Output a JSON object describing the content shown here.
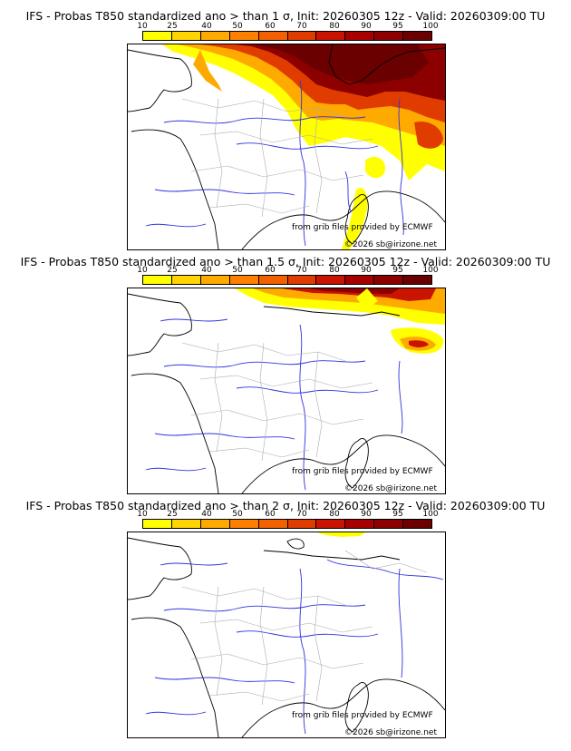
{
  "colors": {
    "scale": [
      "#ffff00",
      "#ffd400",
      "#ffaa00",
      "#ff8000",
      "#f26000",
      "#e03c00",
      "#c81400",
      "#a80000",
      "#8c0000",
      "#6a0000"
    ],
    "coast": "#000000",
    "rivers": "#3232dd",
    "borders": "#aaaaaa"
  },
  "legend_ticks": [
    "10",
    "25",
    "40",
    "50",
    "60",
    "70",
    "80",
    "90",
    "95",
    "100"
  ],
  "panels": [
    {
      "title": "IFS - Probas T850  standardized ano > than 1 σ, Init: 20260305 12z - Valid: 20260309:00 TU",
      "credit_source": "from grib files provided by ECMWF",
      "credit_copyright": "©2026 sb@irizone.net"
    },
    {
      "title": "IFS - Probas T850  standardized ano > than 1.5 σ, Init: 20260305 12z - Valid: 20260309:00 TU",
      "credit_source": "from grib files provided by ECMWF",
      "credit_copyright": "©2026 sb@irizone.net"
    },
    {
      "title": "IFS - Probas T850  standardized ano > than 2 σ, Init: 20260305 12z - Valid: 20260309:00 TU",
      "credit_source": "from grib files provided by ECMWF",
      "credit_copyright": "©2026 sb@irizone.net"
    }
  ]
}
